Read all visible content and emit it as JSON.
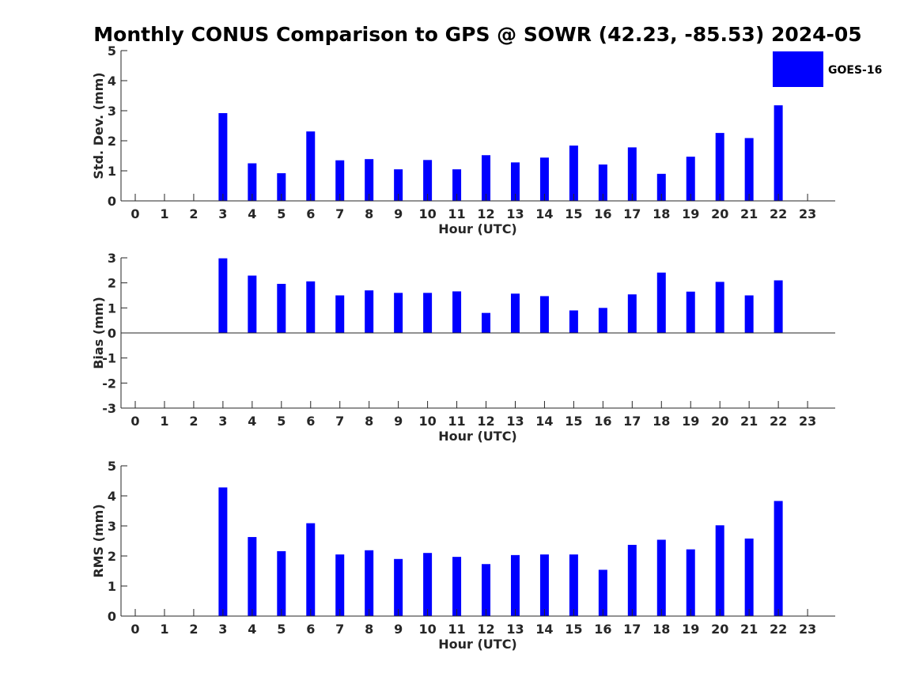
{
  "title": "Monthly CONUS Comparison to GPS @ SOWR (42.23, -85.53) 2024-05",
  "legend": {
    "label": "GOES-16",
    "color": "#0000ff",
    "position": "top-right"
  },
  "chart_data": [
    {
      "type": "bar",
      "name": "std-dev",
      "title": "",
      "xlabel": "Hour (UTC)",
      "ylabel": "Std. Dev. (mm)",
      "categories": [
        "0",
        "1",
        "2",
        "3",
        "4",
        "5",
        "6",
        "7",
        "8",
        "9",
        "10",
        "11",
        "12",
        "13",
        "14",
        "15",
        "16",
        "17",
        "18",
        "19",
        "20",
        "21",
        "22",
        "23"
      ],
      "series": [
        {
          "name": "GOES-16",
          "values": [
            null,
            null,
            null,
            2.92,
            1.25,
            0.92,
            2.31,
            1.35,
            1.39,
            1.05,
            1.36,
            1.05,
            1.52,
            1.28,
            1.44,
            1.84,
            1.21,
            1.78,
            0.9,
            1.47,
            2.26,
            2.09,
            3.18,
            null
          ]
        }
      ],
      "ylim": [
        0,
        5
      ],
      "yticks": [
        "0",
        "1",
        "2",
        "3",
        "4",
        "5"
      ],
      "grid": false
    },
    {
      "type": "bar",
      "name": "bias",
      "title": "",
      "xlabel": "Hour (UTC)",
      "ylabel": "Bias (mm)",
      "categories": [
        "0",
        "1",
        "2",
        "3",
        "4",
        "5",
        "6",
        "7",
        "8",
        "9",
        "10",
        "11",
        "12",
        "13",
        "14",
        "15",
        "16",
        "17",
        "18",
        "19",
        "20",
        "21",
        "22",
        "23"
      ],
      "series": [
        {
          "name": "GOES-16",
          "values": [
            null,
            null,
            null,
            2.98,
            2.29,
            1.96,
            2.06,
            1.5,
            1.7,
            1.6,
            1.6,
            1.66,
            0.8,
            1.57,
            1.47,
            0.9,
            1.0,
            1.54,
            2.41,
            1.65,
            2.04,
            1.5,
            2.1,
            null
          ]
        }
      ],
      "ylim": [
        -3,
        3
      ],
      "yticks": [
        "-3",
        "-2",
        "-1",
        "0",
        "1",
        "2",
        "3"
      ],
      "grid": false
    },
    {
      "type": "bar",
      "name": "rms",
      "title": "",
      "xlabel": "Hour (UTC)",
      "ylabel": "RMS (mm)",
      "categories": [
        "0",
        "1",
        "2",
        "3",
        "4",
        "5",
        "6",
        "7",
        "8",
        "9",
        "10",
        "11",
        "12",
        "13",
        "14",
        "15",
        "16",
        "17",
        "18",
        "19",
        "20",
        "21",
        "22",
        "23"
      ],
      "series": [
        {
          "name": "GOES-16",
          "values": [
            null,
            null,
            null,
            4.28,
            2.63,
            2.16,
            3.09,
            2.05,
            2.19,
            1.9,
            2.1,
            1.97,
            1.73,
            2.03,
            2.05,
            2.05,
            1.54,
            2.37,
            2.54,
            2.22,
            3.02,
            2.58,
            3.83,
            null
          ]
        }
      ],
      "ylim": [
        0,
        5
      ],
      "yticks": [
        "0",
        "1",
        "2",
        "3",
        "4",
        "5"
      ],
      "grid": false
    }
  ]
}
